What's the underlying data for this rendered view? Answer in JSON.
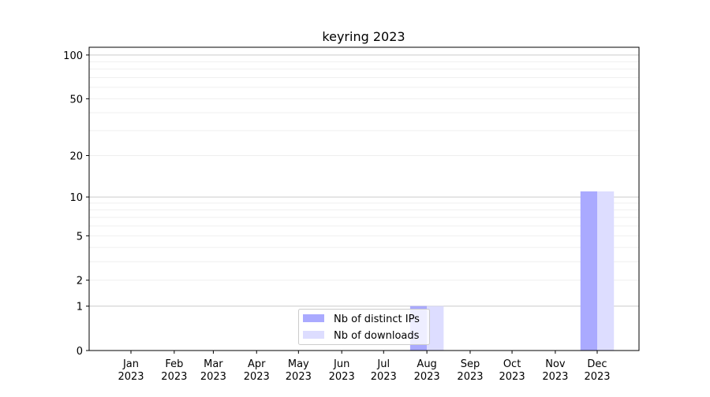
{
  "chart_data": {
    "type": "bar",
    "title": "keyring 2023",
    "xlabel": "",
    "ylabel": "",
    "y_scale": "log(1+y)",
    "ylim": [
      0,
      113
    ],
    "y_ticks": [
      0,
      1,
      2,
      5,
      10,
      20,
      50,
      100
    ],
    "grid": "horizontal, major at 1/10/100, minor at intermediate values",
    "categories": [
      "Jan\n2023",
      "Feb\n2023",
      "Mar\n2023",
      "Apr\n2023",
      "May\n2023",
      "Jun\n2023",
      "Jul\n2023",
      "Aug\n2023",
      "Sep\n2023",
      "Oct\n2023",
      "Nov\n2023",
      "Dec\n2023"
    ],
    "series": [
      {
        "name": "Nb of distinct IPs",
        "color": "#aaaaff",
        "values": [
          0,
          0,
          0,
          0,
          0,
          0,
          0,
          1,
          0,
          0,
          0,
          11
        ]
      },
      {
        "name": "Nb of downloads",
        "color": "#ddddff",
        "values": [
          0,
          0,
          0,
          0,
          0,
          0,
          0,
          1,
          0,
          0,
          0,
          11
        ]
      }
    ],
    "legend_position": "lower-center"
  }
}
